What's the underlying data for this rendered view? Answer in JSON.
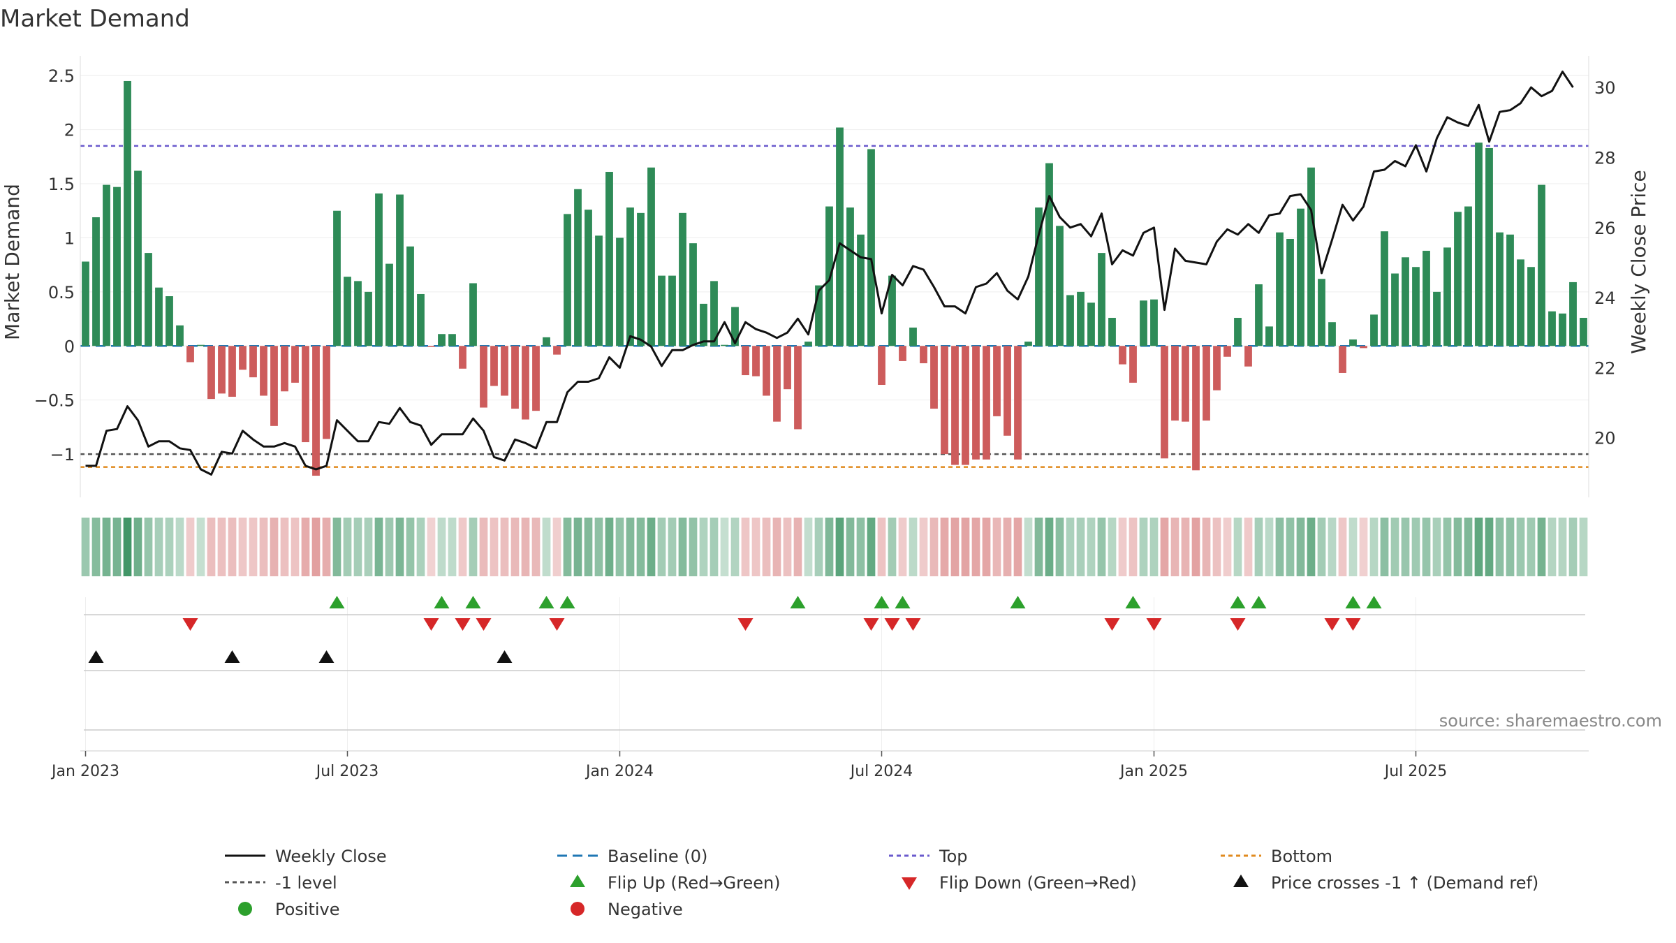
{
  "chart_data": {
    "type": "bar+line",
    "title": "Market Demand",
    "ylabel_left": "Market Demand",
    "ylabel_right": "Weekly Close Price",
    "ylim_left": [
      -1.4,
      2.65
    ],
    "ylim_right": [
      18.3,
      30.8
    ],
    "yticks_left": [
      2.5,
      2,
      1.5,
      1,
      0.5,
      0,
      -0.5,
      -1
    ],
    "yticks_left_labels": [
      "2.5",
      "2",
      "1.5",
      "1",
      "0.5",
      "0",
      "−0.5",
      "−1"
    ],
    "yticks_right": [
      30,
      28,
      26,
      24,
      22,
      20
    ],
    "yticks_right_labels": [
      "30",
      "28",
      "26",
      "24",
      "22",
      "20"
    ],
    "xticks": [
      0,
      25,
      51,
      76,
      102,
      127
    ],
    "xtick_labels": [
      "Jan 2023",
      "Jul 2023",
      "Jan 2024",
      "Jul 2024",
      "Jan 2025",
      "Jul 2025"
    ],
    "levels": {
      "top": 1.85,
      "bottom": -1.12,
      "minus_one": -1,
      "baseline": 0
    },
    "colors": {
      "positive": "#2e8b57",
      "negative": "#cd5c5c",
      "price": "#111111",
      "baseline": "#1f77b4",
      "top": "#6a5acd",
      "bottom": "#e08a1e",
      "minus_one": "#555555",
      "flip_up": "#2ca02c",
      "flip_down": "#d62728",
      "cross": "#111111"
    },
    "demand": [
      0.78,
      1.19,
      1.49,
      1.47,
      2.45,
      1.62,
      0.86,
      0.54,
      0.46,
      0.19,
      -0.15,
      0.01,
      -0.49,
      -0.44,
      -0.47,
      -0.22,
      -0.29,
      -0.46,
      -0.74,
      -0.42,
      -0.34,
      -0.89,
      -1.2,
      -0.86,
      1.25,
      0.64,
      0.6,
      0.5,
      1.41,
      0.76,
      1.4,
      0.92,
      0.48,
      -0.01,
      0.11,
      0.11,
      -0.21,
      0.58,
      -0.57,
      -0.37,
      -0.46,
      -0.58,
      -0.68,
      -0.6,
      0.08,
      -0.08,
      1.22,
      1.45,
      1.26,
      1.02,
      1.61,
      1.0,
      1.28,
      1.23,
      1.65,
      0.65,
      0.65,
      1.23,
      0.95,
      0.39,
      0.6,
      0.01,
      0.36,
      -0.27,
      -0.28,
      -0.46,
      -0.7,
      -0.4,
      -0.77,
      0.04,
      0.56,
      1.29,
      2.02,
      1.28,
      1.03,
      1.82,
      -0.36,
      0.65,
      -0.14,
      0.17,
      -0.16,
      -0.58,
      -1.0,
      -1.1,
      -1.1,
      -1.05,
      -1.05,
      -0.65,
      -0.83,
      -1.05,
      0.04,
      1.28,
      1.69,
      1.11,
      0.47,
      0.5,
      0.4,
      0.86,
      0.26,
      -0.17,
      -0.34,
      0.42,
      0.43,
      -1.04,
      -0.69,
      -0.7,
      -1.15,
      -0.69,
      -0.41,
      -0.1,
      0.26,
      -0.19,
      0.57,
      0.18,
      1.05,
      0.99,
      1.27,
      1.65,
      0.62,
      0.22,
      -0.25,
      0.06,
      -0.02,
      0.29,
      1.06,
      0.67,
      0.82,
      0.73,
      0.88,
      0.5,
      0.91,
      1.24,
      1.29,
      1.88,
      1.83,
      1.05,
      1.03,
      0.8,
      0.73,
      1.49,
      0.32,
      0.3,
      0.59,
      0.26
    ],
    "price": [
      19.2,
      19.2,
      20.2,
      20.25,
      20.9,
      20.5,
      19.75,
      19.9,
      19.9,
      19.7,
      19.65,
      19.1,
      18.95,
      19.6,
      19.55,
      20.2,
      19.95,
      19.75,
      19.75,
      19.85,
      19.75,
      19.2,
      19.1,
      19.2,
      20.5,
      20.2,
      19.9,
      19.9,
      20.45,
      20.4,
      20.85,
      20.45,
      20.35,
      19.8,
      20.1,
      20.1,
      20.1,
      20.55,
      20.2,
      19.45,
      19.35,
      19.95,
      19.85,
      19.7,
      20.45,
      20.45,
      21.3,
      21.6,
      21.6,
      21.7,
      22.3,
      22.0,
      22.9,
      22.8,
      22.6,
      22.05,
      22.5,
      22.5,
      22.65,
      22.75,
      22.75,
      23.3,
      22.7,
      23.3,
      23.1,
      23.0,
      22.85,
      23.0,
      23.4,
      22.95,
      24.2,
      24.5,
      25.55,
      25.35,
      25.15,
      25.1,
      23.55,
      24.65,
      24.35,
      24.9,
      24.8,
      24.3,
      23.75,
      23.75,
      23.55,
      24.3,
      24.4,
      24.7,
      24.2,
      23.95,
      24.6,
      25.8,
      26.9,
      26.3,
      26.0,
      26.1,
      25.75,
      26.4,
      24.95,
      25.35,
      25.2,
      25.85,
      26.0,
      23.65,
      25.4,
      25.05,
      25.0,
      24.95,
      25.6,
      25.95,
      25.8,
      26.1,
      25.85,
      26.35,
      26.4,
      26.9,
      26.95,
      26.5,
      24.7,
      25.65,
      26.65,
      26.2,
      26.6,
      27.6,
      27.65,
      27.9,
      27.75,
      28.35,
      27.6,
      28.55,
      29.15,
      29.0,
      28.9,
      29.5,
      28.45,
      29.3,
      29.35,
      29.55,
      30.0,
      29.75,
      29.9,
      30.45,
      30.0
    ],
    "flip_up": [
      24,
      34,
      37,
      44,
      46,
      68,
      76,
      78,
      89,
      100,
      110,
      112,
      121,
      123
    ],
    "flip_down": [
      10,
      33,
      36,
      38,
      45,
      63,
      75,
      77,
      79,
      98,
      102,
      110,
      119,
      121
    ],
    "price_cross_up": [
      1,
      14,
      23,
      40
    ],
    "legend": [
      "Weekly Close",
      "Baseline (0)",
      "Top",
      "Bottom",
      "-1 level",
      "Flip Up (Red→Green)",
      "Flip Down (Green→Red)",
      "Price crosses -1 ↑ (Demand ref)",
      "Positive",
      "Negative"
    ]
  },
  "source": "source: sharemaestro.com"
}
